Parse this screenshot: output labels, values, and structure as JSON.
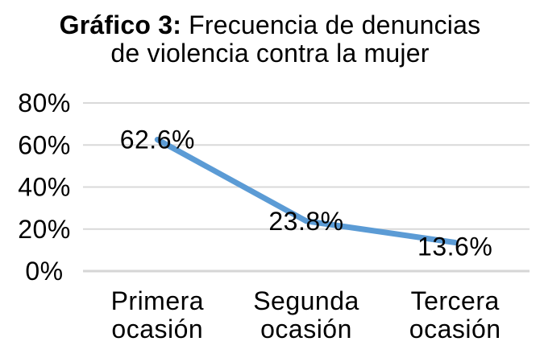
{
  "page": {
    "background": "#FFFFFF"
  },
  "chart_data": {
    "type": "line",
    "title": "Gráfico 3: Frecuencia de denuncias de violencia contra la mujer",
    "title_lines": [
      {
        "bold": "Gráfico 3:",
        "regular": " Frecuencia de denuncias"
      },
      {
        "bold": "",
        "regular": "de violencia contra la mujer"
      }
    ],
    "categories": [
      "Primera ocasión",
      "Segunda ocasión",
      "Tercera ocasión"
    ],
    "values": [
      62.6,
      23.8,
      13.6
    ],
    "data_labels": [
      "62.6%",
      "23.8%",
      "13.6%"
    ],
    "y_ticks": [
      "0%",
      "20%",
      "40%",
      "60%",
      "80%"
    ],
    "ylim": [
      0,
      80
    ],
    "grid": true,
    "legend": false,
    "xlabel": "",
    "ylabel": "",
    "colors": {
      "line": "#5B9BD5",
      "gridline": "#D9D9D9",
      "axis_line": "#D6D6D6",
      "text": "#000000",
      "background": "#FFFFFF"
    }
  }
}
